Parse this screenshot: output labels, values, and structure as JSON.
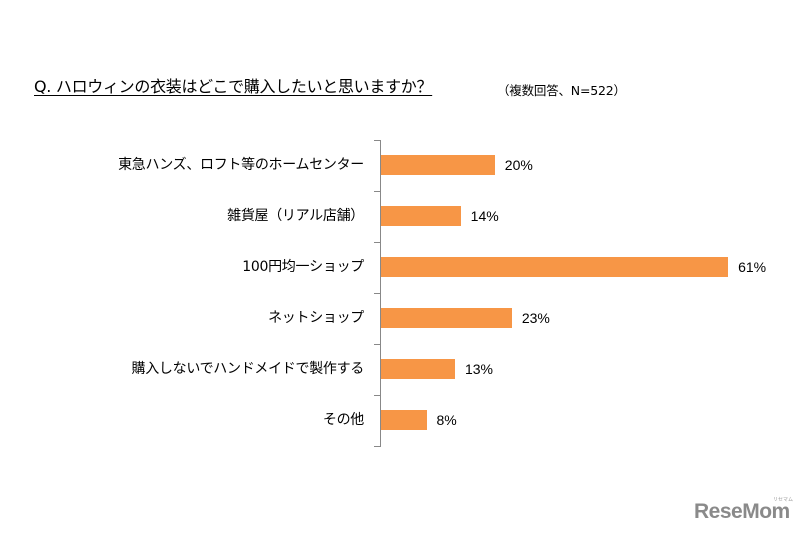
{
  "header": {
    "title": "Q. ハロウィンの衣装はどこで購入したいと思いますか？",
    "note": "（複数回答、N=522）"
  },
  "chart_data": {
    "type": "bar",
    "orientation": "horizontal",
    "title": "Q. ハロウィンの衣装はどこで購入したいと思いますか？",
    "subtitle": "（複数回答、N=522）",
    "categories": [
      "東急ハンズ、ロフト等のホームセンター",
      "雑貨屋（リアル店舗）",
      "100円均一ショップ",
      "ネットショップ",
      "購入しないでハンドメイドで製作する",
      "その他"
    ],
    "values": [
      20,
      14,
      61,
      23,
      13,
      8
    ],
    "value_labels": [
      "20%",
      "14%",
      "61%",
      "23%",
      "13%",
      "8%"
    ],
    "unit": "%",
    "xlabel": "",
    "ylabel": "",
    "grid": false,
    "legend": null,
    "bar_color": "#f79646"
  },
  "footer": {
    "logo": "ReseMom",
    "logo_sub": "リセマム"
  }
}
